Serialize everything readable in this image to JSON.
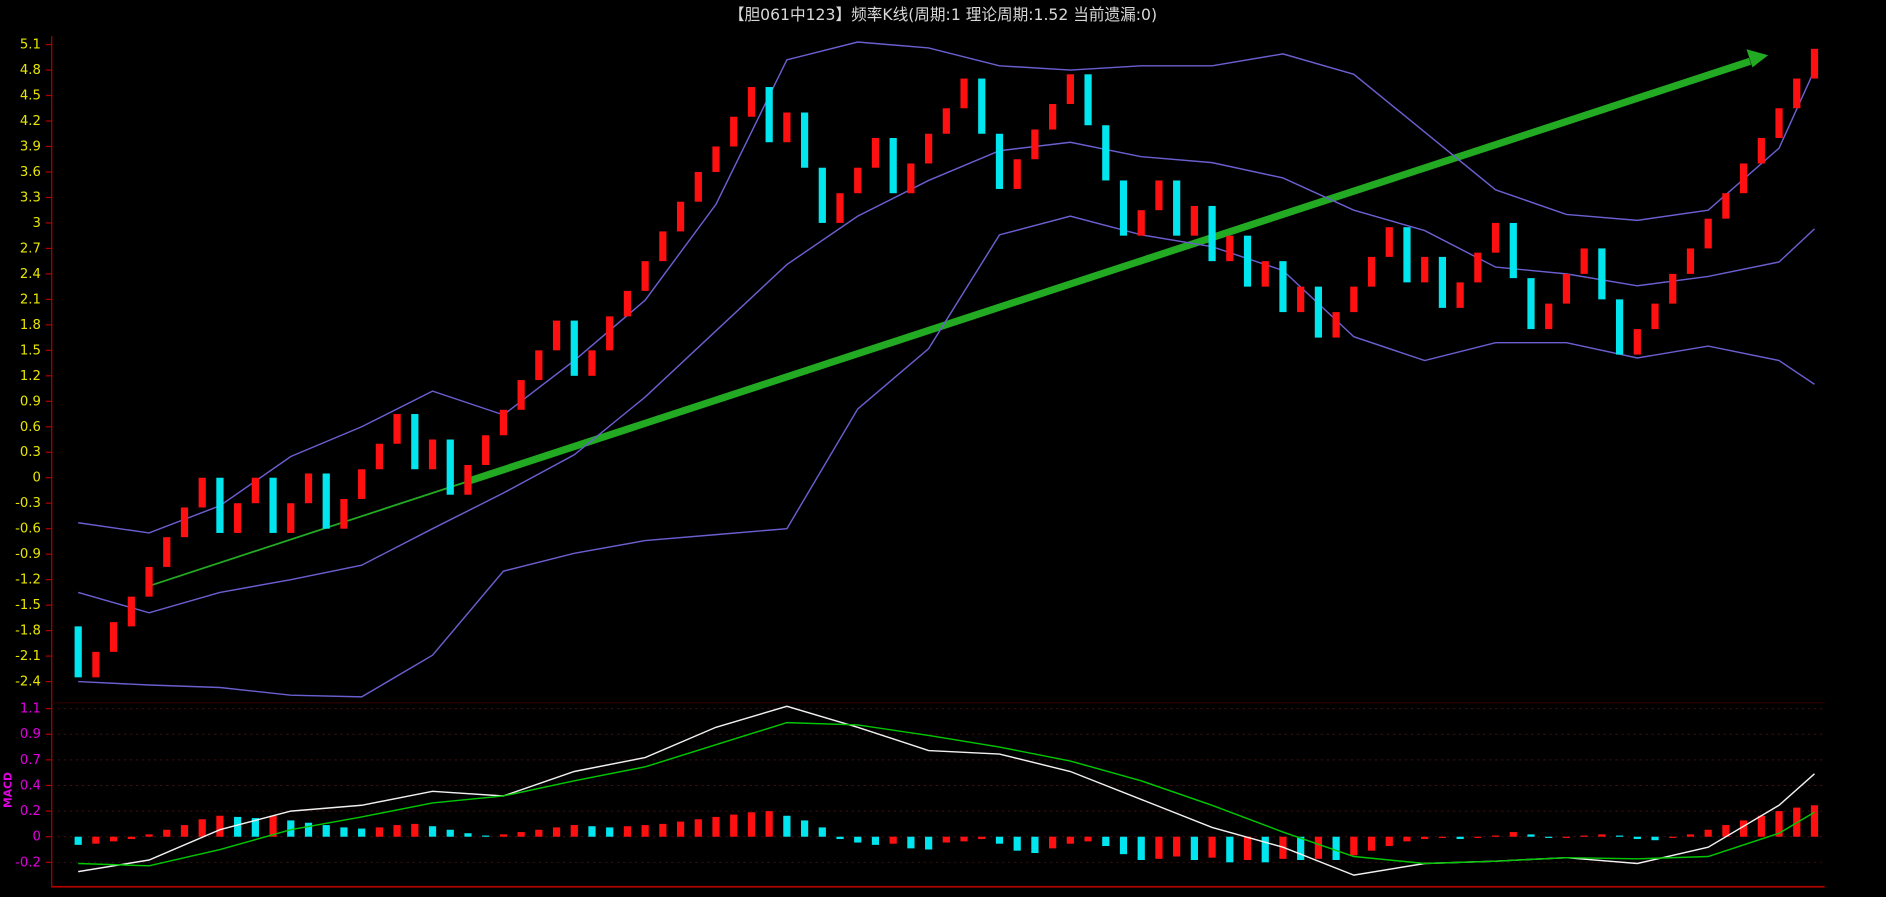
{
  "chart_data": [
    {
      "type": "candlestick",
      "title": "【胆061中123】频率K线(周期:1 理论周期:1.52 当前遗漏:0)",
      "up_color": "#ff1010",
      "down_color": "#00e5ee",
      "open": [
        -1.75,
        -2.35,
        -2.05,
        -1.75,
        -1.4,
        -1.05,
        -0.7,
        -0.35,
        0,
        -0.65,
        -0.3,
        0,
        -0.65,
        -0.3,
        0.05,
        -0.6,
        -0.25,
        0.1,
        0.4,
        0.75,
        0.1,
        0.45,
        -0.2,
        0.15,
        0.5,
        0.8,
        1.15,
        1.5,
        1.85,
        1.2,
        1.5,
        1.9,
        2.2,
        2.55,
        2.9,
        3.25,
        3.6,
        3.9,
        4.25,
        4.6,
        3.95,
        4.3,
        3.65,
        3.0,
        3.35,
        3.65,
        4.0,
        3.35,
        3.7,
        4.05,
        4.35,
        4.7,
        4.05,
        3.4,
        3.75,
        4.1,
        4.4,
        4.75,
        4.15,
        3.5,
        2.85,
        3.15,
        3.5,
        2.85,
        3.2,
        2.55,
        2.85,
        2.25,
        2.55,
        1.95,
        2.25,
        1.65,
        1.95,
        2.25,
        2.6,
        2.95,
        2.3,
        2.6,
        2.0,
        2.3,
        2.65,
        3.0,
        2.35,
        1.75,
        2.05,
        2.4,
        2.7,
        2.1,
        1.45,
        1.75,
        2.05,
        2.4,
        2.7,
        3.05,
        3.35,
        3.7,
        4.0,
        4.35,
        4.7
      ],
      "close": [
        -2.35,
        -2.05,
        -1.7,
        -1.4,
        -1.05,
        -0.7,
        -0.35,
        0,
        -0.65,
        -0.3,
        0,
        -0.65,
        -0.3,
        0.05,
        -0.6,
        -0.25,
        0.1,
        0.4,
        0.75,
        0.1,
        0.45,
        -0.2,
        0.15,
        0.5,
        0.8,
        1.15,
        1.5,
        1.85,
        1.2,
        1.5,
        1.9,
        2.2,
        2.55,
        2.9,
        3.25,
        3.6,
        3.9,
        4.25,
        4.6,
        3.95,
        4.3,
        3.65,
        3.0,
        3.35,
        3.65,
        4.0,
        3.35,
        3.7,
        4.05,
        4.35,
        4.7,
        4.05,
        3.4,
        3.75,
        4.1,
        4.4,
        4.75,
        4.15,
        3.5,
        2.85,
        3.15,
        3.5,
        2.85,
        3.2,
        2.55,
        2.85,
        2.25,
        2.55,
        1.95,
        2.25,
        1.65,
        1.95,
        2.25,
        2.6,
        2.95,
        2.3,
        2.6,
        2.0,
        2.3,
        2.65,
        3.0,
        2.35,
        1.75,
        2.05,
        2.4,
        2.7,
        2.1,
        1.45,
        1.75,
        2.05,
        2.4,
        2.7,
        3.05,
        3.35,
        3.7,
        4.0,
        4.35,
        4.7,
        5.05
      ],
      "lines": [
        {
          "color": "#6a5fd0",
          "x": [
            0,
            4,
            8,
            12,
            16,
            20,
            24,
            28,
            32,
            36,
            40,
            44,
            48,
            52,
            56,
            60,
            64,
            68,
            72,
            76,
            80,
            84,
            88,
            92,
            96,
            98
          ],
          "values": [
            -0.53,
            -0.65,
            -0.33,
            0.25,
            0.6,
            1.02,
            0.74,
            1.38,
            2.09,
            3.22,
            4.92,
            5.13,
            5.06,
            4.85,
            4.8,
            4.85,
            4.85,
            4.99,
            4.75,
            4.07,
            3.39,
            3.1,
            3.03,
            3.15,
            3.88,
            4.8
          ]
        },
        {
          "color": "#6a5fd0",
          "x": [
            0,
            4,
            8,
            12,
            16,
            20,
            24,
            28,
            32,
            36,
            40,
            44,
            48,
            52,
            56,
            60,
            64,
            68,
            72,
            76,
            80,
            84,
            88,
            92,
            96,
            98
          ],
          "values": [
            -1.35,
            -1.59,
            -1.35,
            -1.2,
            -1.03,
            -0.6,
            -0.18,
            0.27,
            0.95,
            1.73,
            2.51,
            3.08,
            3.5,
            3.85,
            3.95,
            3.78,
            3.71,
            3.53,
            3.15,
            2.91,
            2.48,
            2.4,
            2.26,
            2.37,
            2.54,
            2.93
          ]
        },
        {
          "color": "#6a5fd0",
          "x": [
            0,
            4,
            8,
            12,
            16,
            20,
            24,
            28,
            32,
            36,
            40,
            44,
            48,
            52,
            56,
            60,
            64,
            68,
            72,
            76,
            80,
            84,
            88,
            92,
            96,
            98
          ],
          "values": [
            -2.4,
            -2.44,
            -2.47,
            -2.56,
            -2.58,
            -2.09,
            -1.1,
            -0.89,
            -0.74,
            -0.67,
            -0.6,
            0.81,
            1.52,
            2.86,
            3.08,
            2.86,
            2.72,
            2.44,
            1.66,
            1.38,
            1.59,
            1.59,
            1.41,
            1.55,
            1.38,
            1.1
          ]
        }
      ],
      "ylim": [
        -2.65,
        5.2
      ],
      "yticks": [
        5.1,
        4.8,
        4.5,
        4.2,
        3.9,
        3.6,
        3.3,
        3.0,
        2.7,
        2.4,
        2.1,
        1.8,
        1.5,
        1.2,
        0.9,
        0.6,
        0.3,
        0,
        -0.3,
        -0.6,
        -0.9,
        -1.2,
        -1.5,
        -1.8,
        -2.1,
        -2.4
      ],
      "tick_color": "#e6e600",
      "grid": false
    },
    {
      "type": "macd",
      "label": "MACD",
      "up_color": "#ff1010",
      "down_color": "#00e5ee",
      "histogram": [
        -0.07,
        -0.06,
        -0.04,
        -0.02,
        0.02,
        0.06,
        0.1,
        0.15,
        0.18,
        0.17,
        0.16,
        0.18,
        0.14,
        0.12,
        0.1,
        0.08,
        0.07,
        0.08,
        0.1,
        0.11,
        0.09,
        0.06,
        0.03,
        0.01,
        0.02,
        0.04,
        0.06,
        0.08,
        0.1,
        0.09,
        0.08,
        0.09,
        0.1,
        0.11,
        0.13,
        0.15,
        0.17,
        0.19,
        0.21,
        0.22,
        0.18,
        0.14,
        0.08,
        -0.02,
        -0.05,
        -0.07,
        -0.06,
        -0.1,
        -0.11,
        -0.05,
        -0.04,
        -0.02,
        -0.06,
        -0.12,
        -0.14,
        -0.1,
        -0.06,
        -0.04,
        -0.08,
        -0.15,
        -0.2,
        -0.19,
        -0.17,
        -0.2,
        -0.18,
        -0.22,
        -0.2,
        -0.22,
        -0.19,
        -0.2,
        -0.19,
        -0.2,
        -0.16,
        -0.12,
        -0.08,
        -0.04,
        -0.02,
        -0.01,
        -0.02,
        -0.01,
        0.01,
        0.04,
        0.02,
        -0.01,
        0.0,
        0.01,
        0.02,
        0.01,
        -0.02,
        -0.03,
        -0.01,
        0.02,
        0.06,
        0.1,
        0.14,
        0.18,
        0.22,
        0.25,
        0.27
      ],
      "lines": [
        {
          "color": "#f0f0f0",
          "x": [
            0,
            4,
            8,
            12,
            16,
            20,
            24,
            28,
            32,
            36,
            40,
            44,
            48,
            52,
            56,
            60,
            64,
            68,
            72,
            76,
            80,
            84,
            88,
            92,
            96,
            98
          ],
          "values": [
            -0.3,
            -0.2,
            0.06,
            0.22,
            0.27,
            0.39,
            0.35,
            0.56,
            0.68,
            0.94,
            1.12,
            0.94,
            0.74,
            0.71,
            0.56,
            0.32,
            0.08,
            -0.09,
            -0.33,
            -0.23,
            -0.21,
            -0.18,
            -0.23,
            -0.09,
            0.27,
            0.54
          ]
        },
        {
          "color": "#00c800",
          "x": [
            0,
            4,
            8,
            12,
            16,
            20,
            24,
            28,
            32,
            36,
            40,
            44,
            48,
            52,
            56,
            60,
            64,
            68,
            72,
            76,
            80,
            84,
            88,
            92,
            96,
            98
          ],
          "values": [
            -0.23,
            -0.25,
            -0.11,
            0.06,
            0.17,
            0.29,
            0.35,
            0.48,
            0.6,
            0.79,
            0.98,
            0.96,
            0.87,
            0.77,
            0.65,
            0.48,
            0.27,
            0.04,
            -0.17,
            -0.23,
            -0.21,
            -0.18,
            -0.19,
            -0.17,
            0.03,
            0.21
          ]
        }
      ],
      "ylim": [
        -0.43,
        1.15
      ],
      "yticks": [
        1.1,
        {
          "value": 0.88,
          "label": "0.9"
        },
        {
          "value": 0.66,
          "label": "0.7"
        },
        {
          "value": 0.44,
          "label": "0.4"
        },
        {
          "value": 0.22,
          "label": "0.2"
        },
        0,
        {
          "value": -0.22,
          "label": "-0.2"
        }
      ],
      "tick_color": "#e000e0",
      "grid": true
    }
  ]
}
